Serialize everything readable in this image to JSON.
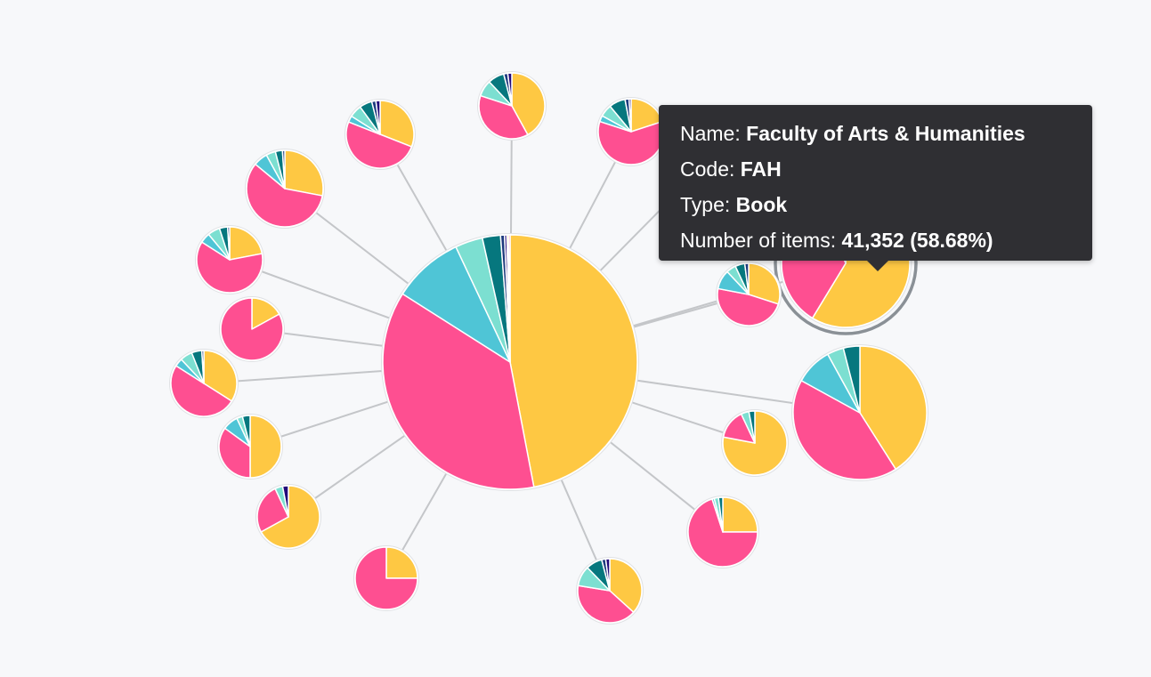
{
  "palette": {
    "yellow": "#fec843",
    "pink": "#fe4f91",
    "cyan": "#4fc5d6",
    "mint": "#7cdfd1",
    "teal": "#06777e",
    "navy": "#1d3a7e",
    "indigo": "#22097a",
    "link": "#c4c6c9",
    "halo": "#8a9096"
  },
  "chart_data": {
    "type": "pie",
    "layout": "radial network of pie charts (one central node linked to 17 satellite nodes)",
    "slice_keys": [
      "yellow",
      "pink",
      "cyan",
      "mint",
      "teal",
      "navy",
      "indigo"
    ],
    "center": {
      "values": [
        47.0,
        37.0,
        9.0,
        3.5,
        2.3,
        0.5,
        0.3,
        0.2,
        0.2
      ]
    },
    "satellites": [
      {
        "values": [
          17,
          83
        ]
      },
      {
        "values": [
          67,
          26,
          0,
          4,
          0,
          0,
          3
        ]
      },
      {
        "values": [
          28,
          58,
          6,
          4,
          3,
          1
        ]
      },
      {
        "values": [
          50,
          35,
          8,
          3,
          4
        ]
      },
      {
        "values": [
          22,
          62,
          5,
          6,
          4,
          1
        ]
      },
      {
        "values": [
          34,
          50,
          4,
          6,
          5,
          1
        ]
      },
      {
        "values": [
          31,
          50,
          3,
          6,
          6,
          2,
          2
        ]
      },
      {
        "values": [
          42,
          38,
          0,
          8,
          8,
          2,
          2
        ]
      },
      {
        "values": [
          20,
          60,
          3,
          6,
          8,
          2,
          1
        ]
      },
      {
        "values": [
          58.68,
          35.32,
          3.0,
          1.5,
          1.0,
          0.5
        ]
      },
      {
        "values": [
          30,
          48,
          10,
          5,
          5,
          2
        ]
      },
      {
        "values": [
          41,
          42,
          9,
          4,
          4
        ]
      },
      {
        "values": [
          78,
          15,
          0,
          4,
          3
        ]
      },
      {
        "values": [
          25,
          70,
          1,
          2,
          2
        ]
      },
      {
        "values": [
          36,
          40,
          0,
          10,
          8,
          2,
          2
        ]
      },
      {
        "values": [
          25,
          75
        ]
      },
      {
        "values": [
          63,
          23,
          0,
          11,
          3
        ]
      }
    ],
    "highlighted_satellite": 9
  },
  "tooltip": {
    "name_label": "Name:",
    "name_value": "Faculty of Arts & Humanities",
    "code_label": "Code:",
    "code_value": "FAH",
    "type_label": "Type:",
    "type_value": "Book",
    "items_label": "Number of items:",
    "items_value": "41,352 (58.68%)"
  }
}
